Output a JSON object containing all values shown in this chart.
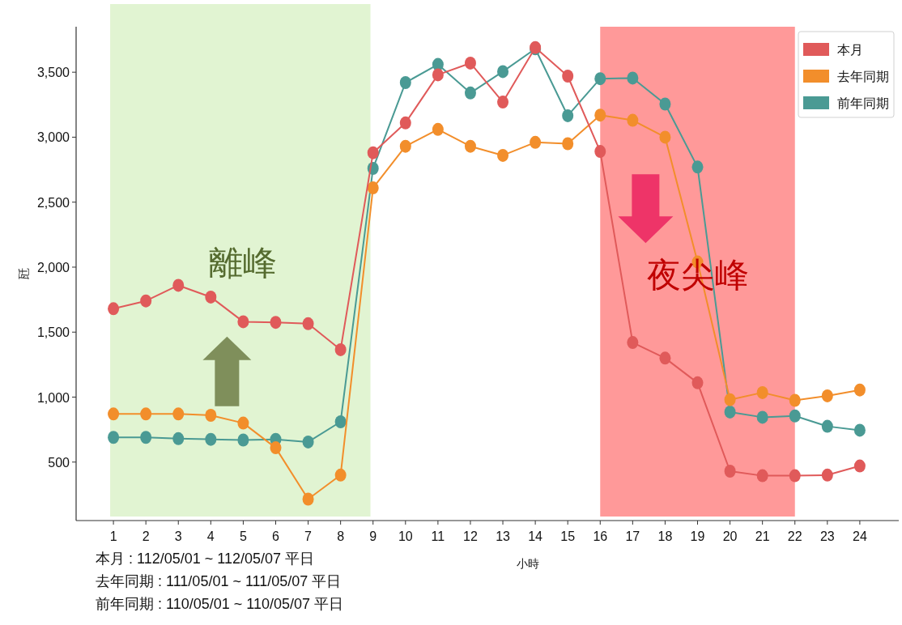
{
  "chart_data": {
    "type": "line",
    "xlabel": "小時",
    "ylabel": "瓩",
    "x": [
      1,
      2,
      3,
      4,
      5,
      6,
      7,
      8,
      9,
      10,
      11,
      12,
      13,
      14,
      15,
      16,
      17,
      18,
      19,
      20,
      21,
      22,
      23,
      24
    ],
    "series": [
      {
        "name": "本月",
        "color": "#e05a5a",
        "values": [
          1680,
          1740,
          1860,
          1770,
          1580,
          1575,
          1565,
          1365,
          2880,
          3110,
          3480,
          3570,
          3270,
          3690,
          3470,
          2890,
          1420,
          1300,
          1110,
          430,
          395,
          395,
          400,
          470
        ]
      },
      {
        "name": "去年同期",
        "color": "#f28e2b",
        "values": [
          870,
          870,
          870,
          860,
          800,
          610,
          215,
          400,
          2610,
          2930,
          3060,
          2930,
          2860,
          2960,
          2950,
          3170,
          3130,
          3000,
          2040,
          980,
          1035,
          975,
          1010,
          1055
        ]
      },
      {
        "name": "前年同期",
        "color": "#4a9a94",
        "values": [
          690,
          690,
          680,
          675,
          670,
          675,
          655,
          810,
          2760,
          3420,
          3560,
          3340,
          3505,
          3680,
          3165,
          3450,
          3455,
          3255,
          2770,
          885,
          845,
          855,
          775,
          745
        ]
      }
    ],
    "xlim": [
      -0.15,
      25.2
    ],
    "ylim": [
      50,
      3850
    ],
    "xticks": [
      1,
      2,
      3,
      4,
      5,
      6,
      7,
      8,
      9,
      10,
      11,
      12,
      13,
      14,
      15,
      16,
      17,
      18,
      19,
      20,
      21,
      22,
      23,
      24
    ],
    "yticks": [
      500,
      {
        "value": 1000,
        "label": "1,000"
      },
      {
        "value": 1500,
        "label": "1,500"
      },
      {
        "value": 2000,
        "label": "2,000"
      },
      {
        "value": 2500,
        "label": "2,500"
      },
      {
        "value": 3000,
        "label": "3,000"
      },
      {
        "value": 3500,
        "label": "3,500"
      }
    ],
    "bands": [
      {
        "axis": "x",
        "from": 0.9,
        "to": 8.92,
        "color": "#e1f4d2"
      },
      {
        "axis": "x",
        "from": 16,
        "to": 22,
        "color": "#ff9999"
      }
    ],
    "annotations": [
      "離峰",
      "夜尖峰",
      "本月 : 112/05/01 ~ 112/05/07 平日",
      "去年同期 : 111/05/01 ~ 111/05/07 平日",
      "前年同期 : 110/05/01 ~ 110/05/07 平日"
    ],
    "marker": "circle",
    "line_style": "solid",
    "grid": false,
    "legend": "top right"
  }
}
